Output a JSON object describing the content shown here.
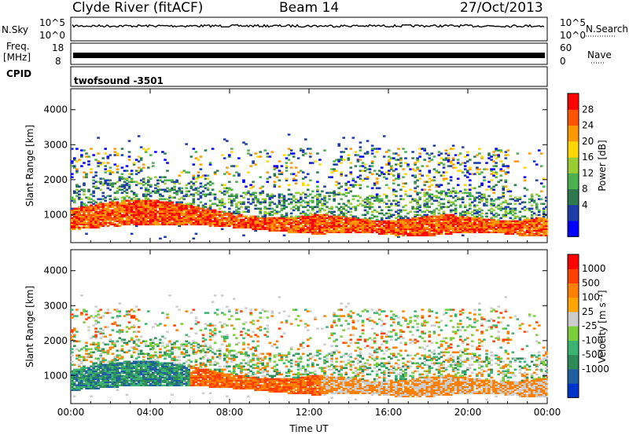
{
  "header": {
    "station": "Clyde River (fitACF)",
    "beam": "Beam 14",
    "date": "27/Oct/2013"
  },
  "top_panels": {
    "nsky_label": "N.Sky",
    "nsky_ticks": [
      "10^5",
      "10^0"
    ],
    "nsearch_label": "N.Search",
    "freq_label_line1": "Freq.",
    "freq_label_line2": "[MHz]",
    "freq_ticks": [
      "18",
      "8"
    ],
    "nave_label": "Nave",
    "nave_ticks": [
      "60",
      "0"
    ],
    "cpid_label": "CPID",
    "cpid_value": "twofsound -3501"
  },
  "chart_data": [
    {
      "type": "heatmap",
      "title": "",
      "ylabel": "Slant Range [km]",
      "xlabel": "",
      "ylim": [
        200,
        4600
      ],
      "y_ticks": [
        1000,
        2000,
        3000,
        4000
      ],
      "x_ticks": [
        "00:00",
        "04:00",
        "08:00",
        "12:00",
        "16:00",
        "20:00",
        "00:00"
      ],
      "colorbar": {
        "label": "Power [dB]",
        "ticks": [
          "28",
          "24",
          "20",
          "16",
          "12",
          "8",
          "4"
        ],
        "colors": [
          "#0000ff",
          "#1c3ca8",
          "#2e7a4e",
          "#4caf50",
          "#9acd32",
          "#ffd700",
          "#ff9900",
          "#ff5500",
          "#ff0000"
        ]
      },
      "bands_description_range_km": [
        {
          "from_hour": 0,
          "to_hour": 12.5,
          "low_km": 400,
          "high_km": 1200,
          "dominant": "strong"
        },
        {
          "from_hour": 12.5,
          "to_hour": 24,
          "low_km": 400,
          "high_km": 900,
          "dominant": "strong"
        }
      ]
    },
    {
      "type": "heatmap",
      "title": "",
      "ylabel": "Slant Range [km]",
      "xlabel": "Time UT",
      "ylim": [
        200,
        4600
      ],
      "y_ticks": [
        1000,
        2000,
        3000,
        4000
      ],
      "x_ticks": [
        "00:00",
        "04:00",
        "08:00",
        "12:00",
        "16:00",
        "20:00",
        "00:00"
      ],
      "colorbar": {
        "label": "Velocity [m s⁻¹]",
        "ticks": [
          "1000",
          "500",
          "100",
          "25",
          "-25",
          "-100",
          "-500",
          "-1000"
        ],
        "colors": [
          "#0033cc",
          "#1f5fa0",
          "#2e8b57",
          "#3cb371",
          "#7ccd3c",
          "#cccccc",
          "#ffa500",
          "#ff8000",
          "#ff4000",
          "#ff0000"
        ]
      }
    }
  ]
}
